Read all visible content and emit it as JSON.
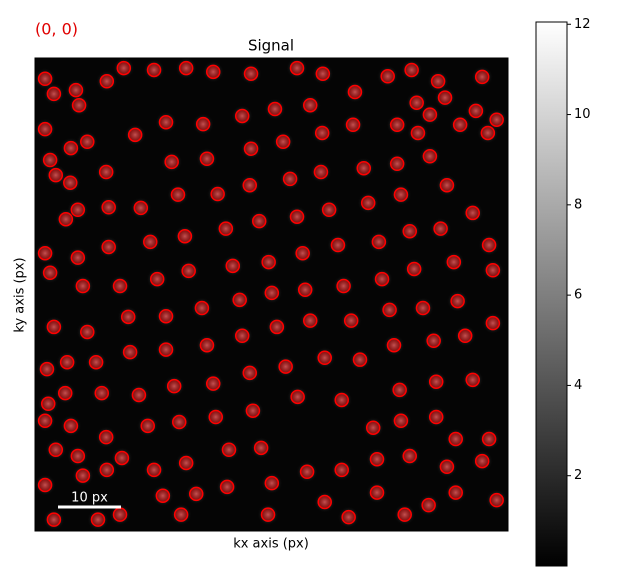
{
  "chart_data": {
    "type": "scatter",
    "title": "Signal",
    "coordinate_label": "(0, 0)",
    "xlabel": "kx axis (px)",
    "ylabel": "ky axis (px)",
    "xlim": [
      0,
      75.1
    ],
    "ylim": [
      75.1,
      0
    ],
    "x": [
      37.6,
      37.1,
      42.5,
      42.9,
      38.4,
      32.5,
      31.4,
      41.6,
      35.6,
      30.3,
      23.8,
      24.4,
      26.5,
      32.9,
      43.7,
      49.0,
      48.1,
      46.7,
      52.9,
      54.6,
      55.1,
      50.2,
      46.0,
      39.8,
      34.1,
      27.3,
      20.8,
      19.4,
      18.3,
      16.8,
      22.7,
      29.0,
      34.1,
      40.5,
      45.4,
      52.2,
      58.1,
      59.5,
      60.2,
      56.3,
      57.0,
      51.6,
      41.7,
      34.6,
      28.3,
      22.1,
      20.8,
      14.8,
      13.5,
      11.7,
      11.7,
      11.3,
      21.7,
      27.3,
      34.3,
      39.4,
      45.6,
      50.5,
      57.5,
      64.4,
      66.5,
      61.6,
      63.3,
      68.3,
      67.1,
      72.7,
      72.1,
      69.5,
      65.4,
      62.7,
      60.8,
      57.5,
      48.7,
      57.9,
      63.7,
      15.1,
      8.3,
      7.6,
      6.8,
      6.8,
      5.6,
      5.7,
      2.4,
      15.9,
      20.8,
      26.7,
      32.9,
      38.1,
      43.7,
      50.8,
      62.7,
      67.5,
      71.9,
      73.3,
      70.0,
      65.1,
      60.6,
      3.0,
      72.7,
      1.6,
      2.4,
      1.9,
      5.1,
      9.7,
      2.1,
      4.8,
      10.6,
      16.5,
      1.6,
      5.7,
      11.3,
      17.9,
      22.9,
      28.7,
      53.7,
      58.1,
      63.7,
      69.5,
      66.8,
      72.1,
      3.3,
      6.8,
      13.8,
      24.0,
      30.8,
      35.9,
      43.2,
      48.7,
      54.3,
      59.5,
      65.4,
      71.0,
      1.6,
      7.6,
      11.4,
      18.9,
      3.0,
      10.0,
      13.5,
      20.3,
      25.6,
      30.5,
      37.6,
      37.0,
      46.0,
      49.8,
      54.3,
      58.7,
      62.5,
      66.8,
      73.3,
      23.2,
      1.6,
      3.0,
      6.5,
      7.0,
      11.4,
      14.1,
      18.9,
      24.0,
      28.3,
      34.3,
      41.6,
      45.7,
      56.0,
      59.8,
      64.0,
      71.0,
      1.6,
      3.3,
      4.9,
      8.3
    ],
    "y": [
      37.3,
      32.4,
      31.0,
      36.8,
      42.7,
      38.4,
      33.0,
      25.2,
      25.9,
      27.1,
      28.3,
      33.8,
      39.7,
      44.1,
      41.7,
      36.2,
      29.7,
      24.1,
      23.0,
      29.2,
      35.1,
      41.7,
      47.6,
      49.0,
      50.0,
      45.6,
      41.0,
      35.1,
      29.2,
      23.8,
      21.7,
      21.6,
      20.2,
      19.2,
      18.1,
      17.5,
      21.7,
      27.5,
      33.5,
      40.0,
      45.6,
      47.9,
      53.8,
      56.0,
      51.7,
      52.1,
      46.3,
      41.1,
      36.2,
      30.0,
      23.7,
      18.1,
      16.5,
      16.0,
      14.4,
      13.3,
      11.9,
      10.6,
      16.8,
      27.1,
      32.4,
      39.7,
      44.9,
      44.1,
      38.6,
      33.7,
      29.7,
      24.6,
      20.2,
      15.6,
      11.9,
      10.6,
      54.3,
      52.7,
      51.4,
      46.7,
      43.5,
      36.2,
      31.7,
      24.1,
      19.8,
      14.3,
      16.2,
      12.2,
      10.2,
      10.5,
      9.2,
      8.1,
      7.5,
      5.4,
      9.0,
      10.6,
      11.9,
      9.8,
      8.4,
      6.3,
      7.1,
      42.7,
      42.1,
      31.0,
      34.1,
      49.4,
      48.3,
      48.3,
      54.9,
      53.2,
      53.2,
      53.5,
      57.6,
      58.4,
      60.2,
      58.4,
      57.8,
      57.0,
      58.7,
      57.6,
      57.0,
      51.1,
      60.5,
      60.5,
      62.2,
      63.2,
      63.5,
      64.3,
      62.2,
      61.9,
      65.7,
      65.4,
      63.7,
      63.2,
      64.9,
      64.0,
      67.8,
      66.3,
      65.4,
      65.4,
      73.3,
      73.3,
      72.5,
      69.5,
      69.2,
      68.1,
      67.5,
      72.5,
      70.5,
      72.9,
      69.0,
      72.5,
      71.0,
      69.0,
      70.2,
      72.5,
      3.3,
      5.7,
      5.1,
      7.5,
      3.7,
      1.6,
      1.9,
      1.6,
      2.2,
      2.5,
      1.6,
      2.5,
      2.9,
      1.9,
      3.7,
      3.0,
      11.3,
      18.6,
      25.6,
      13.3
    ],
    "marker_color": "#ff0000",
    "colormap": "gray",
    "clim": [
      0,
      12.05
    ],
    "colorbar_ticks": [
      2,
      4,
      6,
      8,
      10,
      12
    ],
    "scalebar": {
      "length": 10,
      "label": "10 px"
    }
  }
}
